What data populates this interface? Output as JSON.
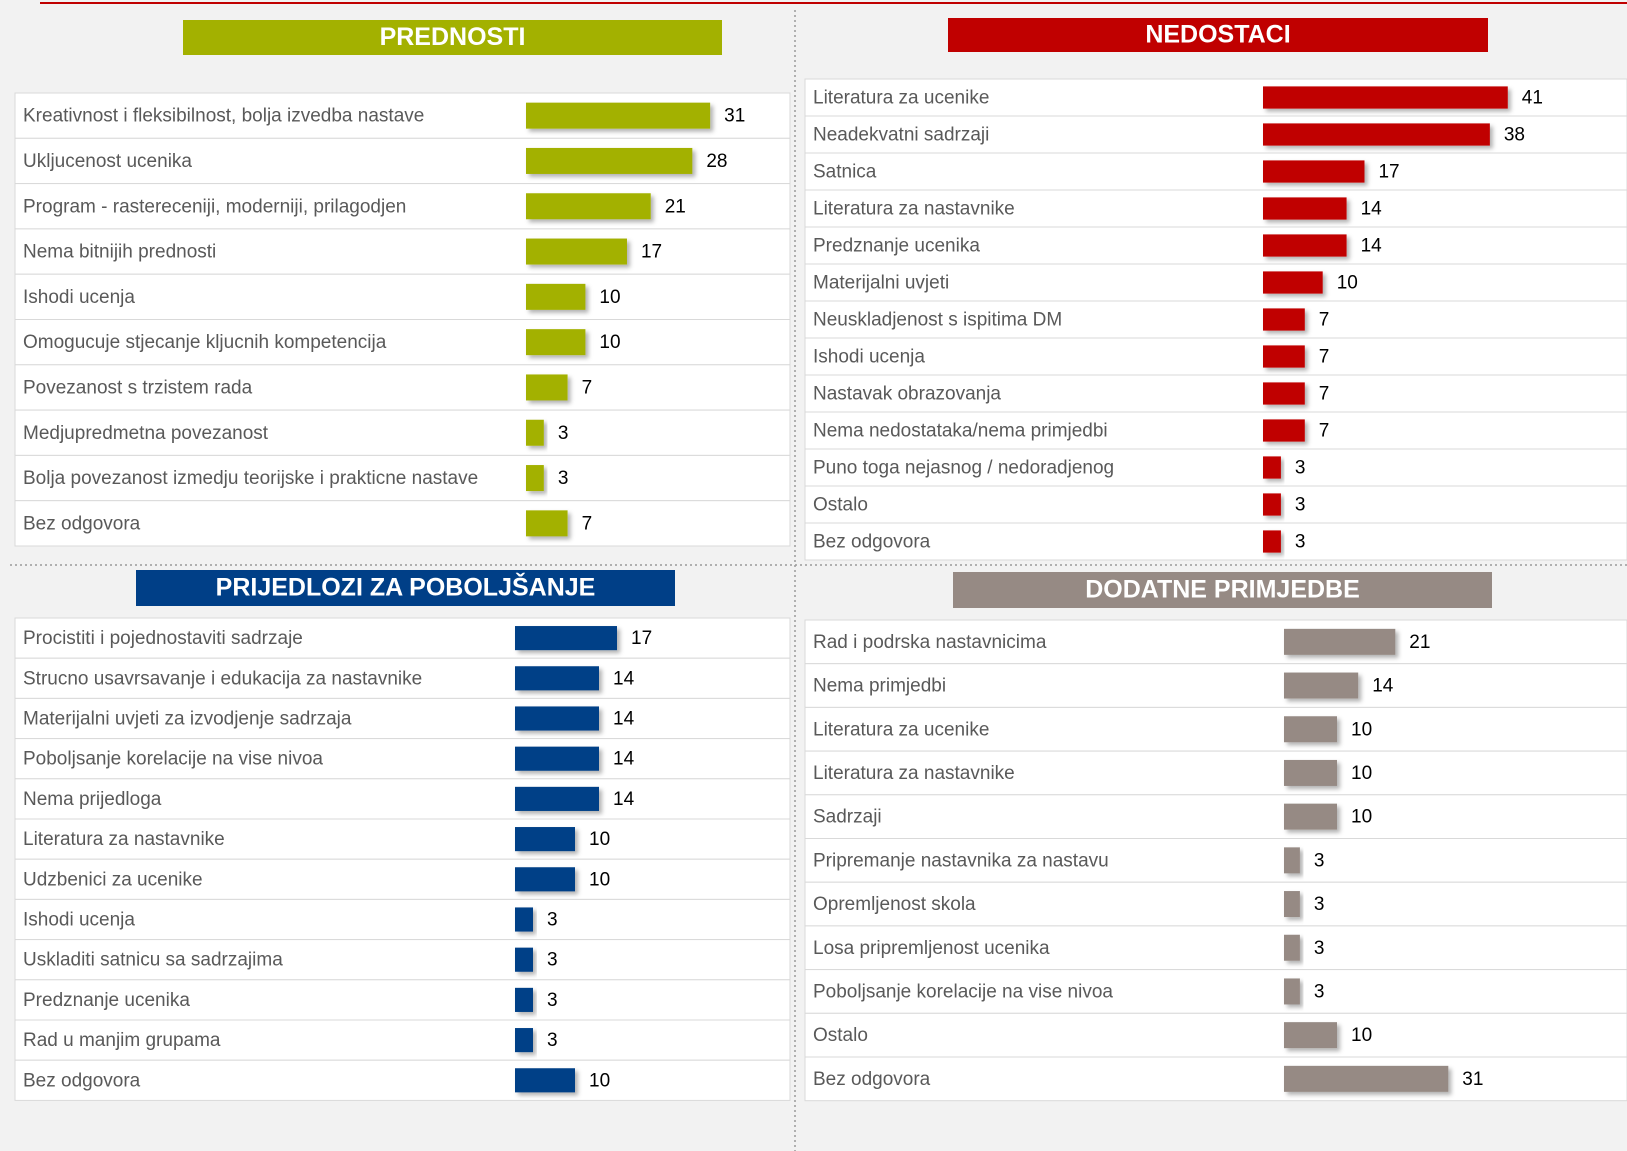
{
  "chart_data": [
    {
      "type": "bar",
      "title": "PREDNOSTI",
      "color": "#a3b100",
      "categories": [
        "Kreativnost i fleksibilnost, bolja izvedba nastave",
        "Ukljucenost ucenika",
        "Program - rastereceniji, moderniji, prilagodjen",
        "Nema bitnijih prednosti",
        "Ishodi ucenja",
        "Omogucuje stjecanje kljucnih kompetencija",
        "Povezanost s trzistem rada",
        "Medjupredmetna povezanost",
        "Bolja povezanost izmedju teorijske i prakticne nastave",
        "Bez odgovora"
      ],
      "values": [
        31,
        28,
        21,
        17,
        10,
        10,
        7,
        3,
        3,
        7
      ]
    },
    {
      "type": "bar",
      "title": "NEDOSTACI",
      "color": "#c00000",
      "categories": [
        "Literatura za ucenike",
        "Neadekvatni sadrzaji",
        "Satnica",
        "Literatura za nastavnike",
        "Predznanje ucenika",
        "Materijalni uvjeti",
        "Neuskladjenost s ispitima DM",
        "Ishodi ucenja",
        "Nastavak obrazovanja",
        "Nema nedostataka/nema primjedbi",
        "Puno toga nejasnog / nedoradjenog",
        "Ostalo",
        "Bez odgovora"
      ],
      "values": [
        41,
        38,
        17,
        14,
        14,
        10,
        7,
        7,
        7,
        7,
        3,
        3,
        3
      ]
    },
    {
      "type": "bar",
      "title": "PRIJEDLOZI ZA POBOLJŠANJE",
      "color": "#003f87",
      "categories": [
        "Procistiti i pojednostaviti sadrzaje",
        "Strucno usavrsavanje i edukacija za nastavnike",
        "Materijalni uvjeti  za izvodjenje sadrzaja",
        "Poboljsanje korelacije na vise nivoa",
        "Nema prijedloga",
        "Literatura za nastavnike",
        "Udzbenici za ucenike",
        "Ishodi ucenja",
        "Uskladiti satnicu sa sadrzajima",
        "Predznanje ucenika",
        "Rad u manjim grupama",
        "Bez odgovora"
      ],
      "values": [
        17,
        14,
        14,
        14,
        14,
        10,
        10,
        3,
        3,
        3,
        3,
        10
      ]
    },
    {
      "type": "bar",
      "title": "DODATNE PRIMJEDBE",
      "color": "#968a84",
      "categories": [
        "Rad i podrska nastavnicima",
        "Nema primjedbi",
        "Literatura za ucenike",
        "Literatura za nastavnike",
        "Sadrzaji",
        "Pripremanje nastavnika za nastavu",
        "Opremljenost skola",
        "Losa pripremljenost ucenika",
        "Poboljsanje korelacije na vise nivoa",
        "Ostalo",
        "Bez odgovora"
      ],
      "values": [
        21,
        14,
        10,
        10,
        10,
        3,
        3,
        3,
        3,
        10,
        31
      ]
    }
  ]
}
